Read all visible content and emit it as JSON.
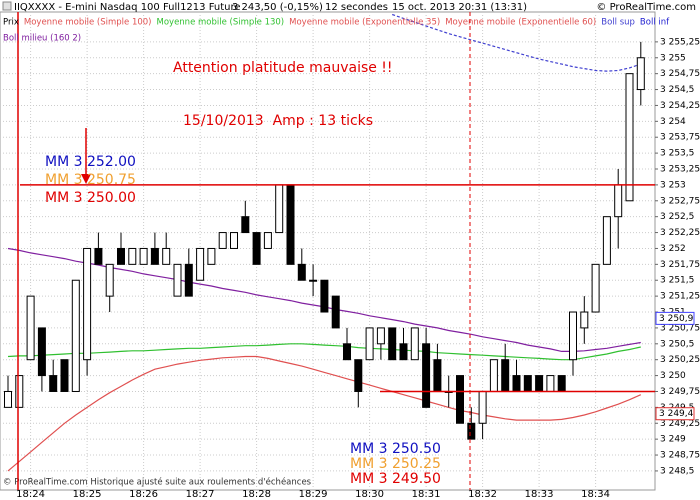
{
  "header": {
    "title": "IIQXXXX - E-mini Nasdaq 100 Full1213 Future",
    "price": "3 243,50 (-0,15%)",
    "period": "12 secondes",
    "date": "15 oct. 2013 20:31 (13:31)",
    "copyright": "© ProRealTime.com"
  },
  "footer": "© ProRealTime.com Historique ajusté suite aux roulements d'échéances",
  "legend_extra": [
    {
      "name": "Prix",
      "color": "#000000"
    },
    {
      "name": "Moyenne mobile (Simple 100)",
      "color": "#e05050"
    },
    {
      "name": "Moyenne mobile (Exponentielle 60)",
      "color": "#e05050"
    },
    {
      "name": "Boll inf",
      "color": "#2020d0"
    }
  ],
  "chart_data": {
    "type": "candlestick",
    "categories": [
      null,
      null,
      "18:24",
      null,
      null,
      null,
      null,
      "18:25",
      null,
      null,
      null,
      null,
      "18:26",
      null,
      null,
      null,
      null,
      "18:27",
      null,
      null,
      null,
      null,
      "18:28",
      null,
      null,
      null,
      null,
      "18:29",
      null,
      null,
      null,
      null,
      "18:30",
      null,
      null,
      null,
      null,
      "18:31",
      null,
      null,
      null,
      null,
      "18:32",
      null,
      null,
      null,
      null,
      "18:33",
      null,
      null,
      null,
      null,
      "18:34",
      null,
      null,
      null,
      null
    ],
    "open": [
      3249.5,
      3249.5,
      3250.25,
      3250.75,
      3250.0,
      3250.25,
      3249.75,
      3250.25,
      3252.0,
      3251.25,
      3252.0,
      3251.75,
      3251.75,
      3252.0,
      3251.75,
      3251.25,
      3251.75,
      3251.5,
      3251.75,
      3252.0,
      3252.0,
      3252.5,
      3252.25,
      3252.0,
      3252.25,
      3253.0,
      3251.75,
      3251.5,
      3251.5,
      3251.25,
      3250.5,
      3250.25,
      3250.25,
      3250.5,
      3250.75,
      3250.5,
      3250.25,
      3250.5,
      3250.25,
      3249.75,
      3250.0,
      3249.25,
      3249.25,
      3249.75,
      3250.25,
      3250.0,
      3250.0,
      3250.0,
      3249.75,
      3250.0,
      3250.25,
      3250.75,
      3251.0,
      3251.75,
      3252.5,
      3252.75,
      3254.5
    ],
    "high": [
      3250.0,
      3250.0,
      3251.25,
      3250.75,
      3250.25,
      3250.25,
      3251.5,
      3252.0,
      3252.25,
      3251.75,
      3252.25,
      3252.0,
      3252.0,
      3252.25,
      3252.25,
      3251.75,
      3252.0,
      3252.0,
      3252.0,
      3252.25,
      3252.25,
      3252.75,
      3252.25,
      3252.25,
      3253.0,
      3253.0,
      3252.0,
      3251.75,
      3251.5,
      3251.25,
      3250.75,
      3250.25,
      3250.75,
      3250.75,
      3250.75,
      3250.75,
      3250.75,
      3250.75,
      3250.5,
      3250.0,
      3250.0,
      3249.5,
      3249.75,
      3250.25,
      3250.5,
      3250.25,
      3250.0,
      3250.0,
      3250.0,
      3250.0,
      3251.0,
      3251.25,
      3251.75,
      3252.5,
      3253.25,
      3254.75,
      3255.25
    ],
    "low": [
      3249.5,
      3249.5,
      3250.25,
      3249.75,
      3249.75,
      3249.75,
      3249.75,
      3250.0,
      3251.75,
      3251.0,
      3251.75,
      3251.75,
      3251.75,
      3251.75,
      3251.75,
      3251.25,
      3251.25,
      3251.5,
      3251.75,
      3252.0,
      3252.0,
      3252.25,
      3251.75,
      3252.0,
      3252.25,
      3251.75,
      3251.5,
      3251.25,
      3251.0,
      3250.75,
      3250.25,
      3249.5,
      3250.25,
      3250.25,
      3250.25,
      3250.25,
      3250.25,
      3249.5,
      3249.75,
      3249.5,
      3249.25,
      3249.0,
      3249.0,
      3249.75,
      3249.75,
      3249.75,
      3249.75,
      3249.75,
      3249.75,
      3249.75,
      3250.0,
      3250.5,
      3251.0,
      3251.75,
      3252.0,
      3252.75,
      3254.25
    ],
    "close": [
      3249.75,
      3250.0,
      3251.25,
      3250.0,
      3249.75,
      3249.75,
      3251.5,
      3252.0,
      3251.75,
      3251.75,
      3251.75,
      3252.0,
      3252.0,
      3251.75,
      3252.0,
      3251.75,
      3251.25,
      3252.0,
      3252.0,
      3252.25,
      3252.25,
      3252.25,
      3251.75,
      3252.25,
      3253.0,
      3251.75,
      3251.5,
      3251.5,
      3251.0,
      3250.75,
      3250.25,
      3249.75,
      3250.75,
      3250.75,
      3250.25,
      3250.25,
      3250.75,
      3249.5,
      3249.75,
      3249.75,
      3249.25,
      3249.0,
      3249.75,
      3250.25,
      3249.75,
      3249.75,
      3249.75,
      3249.75,
      3250.0,
      3249.75,
      3251.0,
      3251.0,
      3251.75,
      3252.5,
      3253.0,
      3254.75,
      3255.0
    ],
    "series": [
      {
        "name": "Moyenne mobile (Simple 130)",
        "color": "#30c030",
        "values": [
          3250.3,
          3250.31,
          3250.31,
          3250.32,
          3250.33,
          3250.34,
          3250.35,
          3250.35,
          3250.36,
          3250.37,
          3250.38,
          3250.39,
          3250.39,
          3250.4,
          3250.41,
          3250.42,
          3250.43,
          3250.43,
          3250.44,
          3250.45,
          3250.46,
          3250.47,
          3250.47,
          3250.48,
          3250.49,
          3250.5,
          3250.5,
          3250.49,
          3250.48,
          3250.47,
          3250.46,
          3250.44,
          3250.43,
          3250.42,
          3250.41,
          3250.4,
          3250.39,
          3250.38,
          3250.36,
          3250.35,
          3250.34,
          3250.33,
          3250.32,
          3250.31,
          3250.3,
          3250.29,
          3250.28,
          3250.27,
          3250.26,
          3250.25,
          3250.25,
          3250.28,
          3250.31,
          3250.34,
          3250.38,
          3250.41,
          3250.45
        ]
      },
      {
        "name": "Moyenne mobile (Exponentielle 35)",
        "color": "#e05050",
        "values": [
          3248.5,
          3248.65,
          3248.8,
          3248.95,
          3249.1,
          3249.25,
          3249.38,
          3249.5,
          3249.62,
          3249.73,
          3249.83,
          3249.93,
          3250.02,
          3250.1,
          3250.14,
          3250.18,
          3250.21,
          3250.24,
          3250.26,
          3250.28,
          3250.29,
          3250.3,
          3250.3,
          3250.27,
          3250.23,
          3250.19,
          3250.15,
          3250.1,
          3250.05,
          3250.0,
          3249.95,
          3249.9,
          3249.85,
          3249.8,
          3249.75,
          3249.7,
          3249.65,
          3249.6,
          3249.55,
          3249.5,
          3249.45,
          3249.42,
          3249.38,
          3249.35,
          3249.32,
          3249.3,
          3249.3,
          3249.3,
          3249.3,
          3249.31,
          3249.34,
          3249.38,
          3249.43,
          3249.49,
          3249.55,
          3249.62,
          3249.7
        ]
      },
      {
        "name": "Boll sup",
        "color": "#4040d0",
        "dashed": true,
        "values": [
          null,
          null,
          null,
          null,
          null,
          null,
          null,
          null,
          null,
          null,
          null,
          null,
          null,
          null,
          null,
          null,
          null,
          null,
          null,
          null,
          null,
          null,
          null,
          null,
          null,
          null,
          null,
          null,
          null,
          null,
          null,
          null,
          null,
          null,
          3255.68,
          3255.62,
          3255.56,
          3255.5,
          3255.44,
          3255.38,
          3255.33,
          3255.28,
          3255.23,
          3255.18,
          3255.13,
          3255.08,
          3255.03,
          3254.98,
          3254.94,
          3254.9,
          3254.86,
          3254.83,
          3254.8,
          3254.79,
          3254.8,
          3254.84,
          3254.9
        ]
      },
      {
        "name": "Boll milieu (160 2)",
        "color": "#8020a0",
        "values": [
          3252.0,
          3251.97,
          3251.93,
          3251.9,
          3251.87,
          3251.84,
          3251.8,
          3251.77,
          3251.74,
          3251.7,
          3251.67,
          3251.64,
          3251.6,
          3251.57,
          3251.54,
          3251.51,
          3251.47,
          3251.44,
          3251.41,
          3251.37,
          3251.34,
          3251.31,
          3251.27,
          3251.24,
          3251.21,
          3251.18,
          3251.14,
          3251.11,
          3251.08,
          3251.04,
          3251.01,
          3250.98,
          3250.94,
          3250.91,
          3250.88,
          3250.85,
          3250.81,
          3250.78,
          3250.75,
          3250.71,
          3250.68,
          3250.65,
          3250.61,
          3250.58,
          3250.55,
          3250.52,
          3250.48,
          3250.45,
          3250.42,
          3250.38,
          3250.38,
          3250.39,
          3250.41,
          3250.43,
          3250.46,
          3250.49,
          3250.52
        ]
      }
    ],
    "ylim": [
      3248.2,
      3255.72
    ],
    "yticks": [
      {
        "value": 3248.5,
        "label": "3 248,5"
      },
      {
        "value": 3248.75,
        "label": "3 248,75"
      },
      {
        "value": 3249,
        "label": "3 249"
      },
      {
        "value": 3249.25,
        "label": "3 249,25"
      },
      {
        "value": 3249.5,
        "label": "3 249,5"
      },
      {
        "value": 3249.75,
        "label": "3 249,75"
      },
      {
        "value": 3250,
        "label": "3 250"
      },
      {
        "value": 3250.25,
        "label": "3 250,25"
      },
      {
        "value": 3250.5,
        "label": "3 250,5"
      },
      {
        "value": 3250.75,
        "label": "3 250,75"
      },
      {
        "value": 3251,
        "label": "3 251"
      },
      {
        "value": 3251.25,
        "label": "3 251,25"
      },
      {
        "value": 3251.5,
        "label": "3 251,5"
      },
      {
        "value": 3251.75,
        "label": "3 251,75"
      },
      {
        "value": 3252,
        "label": "3 252"
      },
      {
        "value": 3252.25,
        "label": "3 252,25"
      },
      {
        "value": 3252.5,
        "label": "3 252,5"
      },
      {
        "value": 3252.75,
        "label": "3 252,75"
      },
      {
        "value": 3253,
        "label": "3 253"
      },
      {
        "value": 3253.25,
        "label": "3 253,25"
      },
      {
        "value": 3253.5,
        "label": "3 253,5"
      },
      {
        "value": 3253.75,
        "label": "3 253,75"
      },
      {
        "value": 3254,
        "label": "3 254"
      },
      {
        "value": 3254.25,
        "label": "3 254,25"
      },
      {
        "value": 3254.5,
        "label": "3 254,5"
      },
      {
        "value": 3254.75,
        "label": "3 254,75"
      },
      {
        "value": 3255,
        "label": "3 255"
      },
      {
        "value": 3255.25,
        "label": "3 255,25"
      }
    ],
    "grid": true,
    "hlines": [
      {
        "value": 3253,
        "color": "#e00000"
      },
      {
        "value": 3249.75,
        "color": "#e00000"
      }
    ],
    "price_labels": [
      {
        "value": 3250.9,
        "label": "3 250,9",
        "color": "#4040ff"
      },
      {
        "value": 3249.4,
        "label": "3 249,4",
        "color": "#e03030"
      }
    ],
    "annotations": [
      {
        "text": "Attention platitude mauvaise !!",
        "color": "#e00000"
      },
      {
        "text": "15/10/2013  Amp : 13 ticks",
        "color": "#e00000"
      },
      {
        "text": "MM 3 252.00",
        "color": "#1010c0"
      },
      {
        "text": "MM 3 250.75",
        "color": "#f0a030"
      },
      {
        "text": "MM 3 250.00",
        "color": "#e00000"
      },
      {
        "text": "MM 3 250.50",
        "color": "#1010c0"
      },
      {
        "text": "MM 3 250.25",
        "color": "#f0a030"
      },
      {
        "text": "MM 3 249.50",
        "color": "#e00000"
      }
    ]
  }
}
